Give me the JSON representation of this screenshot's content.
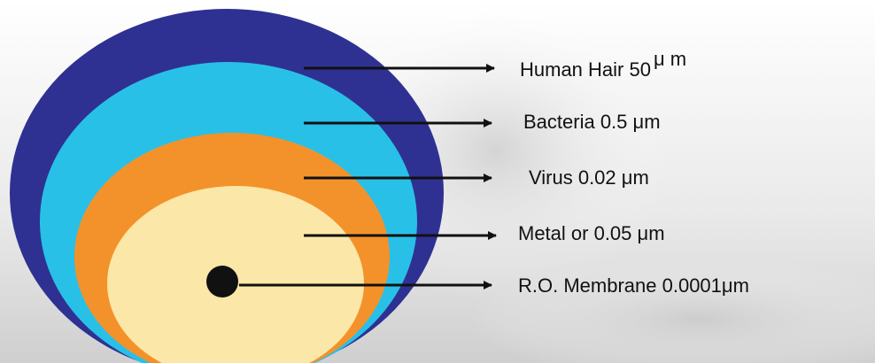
{
  "labels": [
    {
      "text": "Human Hair 50",
      "unit": "μ m"
    },
    {
      "text": "Bacteria 0.5 μm"
    },
    {
      "text": "Virus 0.02 μm"
    },
    {
      "text": "Metal or 0.05 μm"
    },
    {
      "text": "R.O. Membrane 0.0001μm"
    }
  ]
}
